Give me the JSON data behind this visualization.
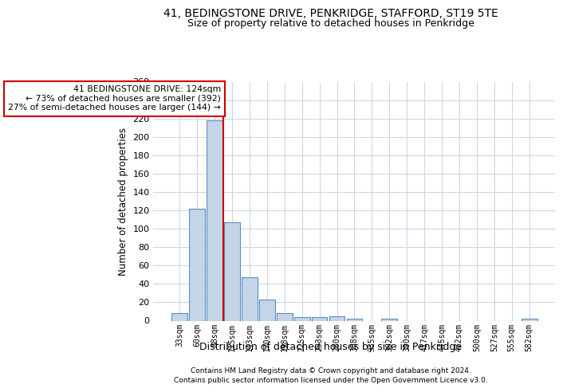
{
  "title": "41, BEDINGSTONE DRIVE, PENKRIDGE, STAFFORD, ST19 5TE",
  "subtitle": "Size of property relative to detached houses in Penkridge",
  "xlabel": "Distribution of detached houses by size in Penkridge",
  "ylabel": "Number of detached properties",
  "categories": [
    "33sqm",
    "60sqm",
    "88sqm",
    "115sqm",
    "143sqm",
    "170sqm",
    "198sqm",
    "225sqm",
    "253sqm",
    "280sqm",
    "308sqm",
    "335sqm",
    "362sqm",
    "390sqm",
    "417sqm",
    "445sqm",
    "472sqm",
    "500sqm",
    "527sqm",
    "555sqm",
    "582sqm"
  ],
  "values": [
    8,
    122,
    218,
    107,
    47,
    23,
    8,
    4,
    4,
    5,
    2,
    0,
    2,
    0,
    0,
    0,
    0,
    0,
    0,
    0,
    2
  ],
  "bar_color": "#c5d5e8",
  "bar_edgecolor": "#5b8ec4",
  "annotation_text": "41 BEDINGSTONE DRIVE: 124sqm\n← 73% of detached houses are smaller (392)\n27% of semi-detached houses are larger (144) →",
  "annotation_box_color": "#ffffff",
  "annotation_box_edgecolor": "#cc0000",
  "vline_color": "#cc0000",
  "footer_line1": "Contains HM Land Registry data © Crown copyright and database right 2024.",
  "footer_line2": "Contains public sector information licensed under the Open Government Licence v3.0.",
  "ylim": [
    0,
    260
  ],
  "yticks": [
    0,
    20,
    40,
    60,
    80,
    100,
    120,
    140,
    160,
    180,
    200,
    220,
    240,
    260
  ],
  "bg_color": "#ffffff",
  "grid_color": "#c8d4e8",
  "title_fontsize": 10,
  "subtitle_fontsize": 9,
  "vline_index": 2.5
}
